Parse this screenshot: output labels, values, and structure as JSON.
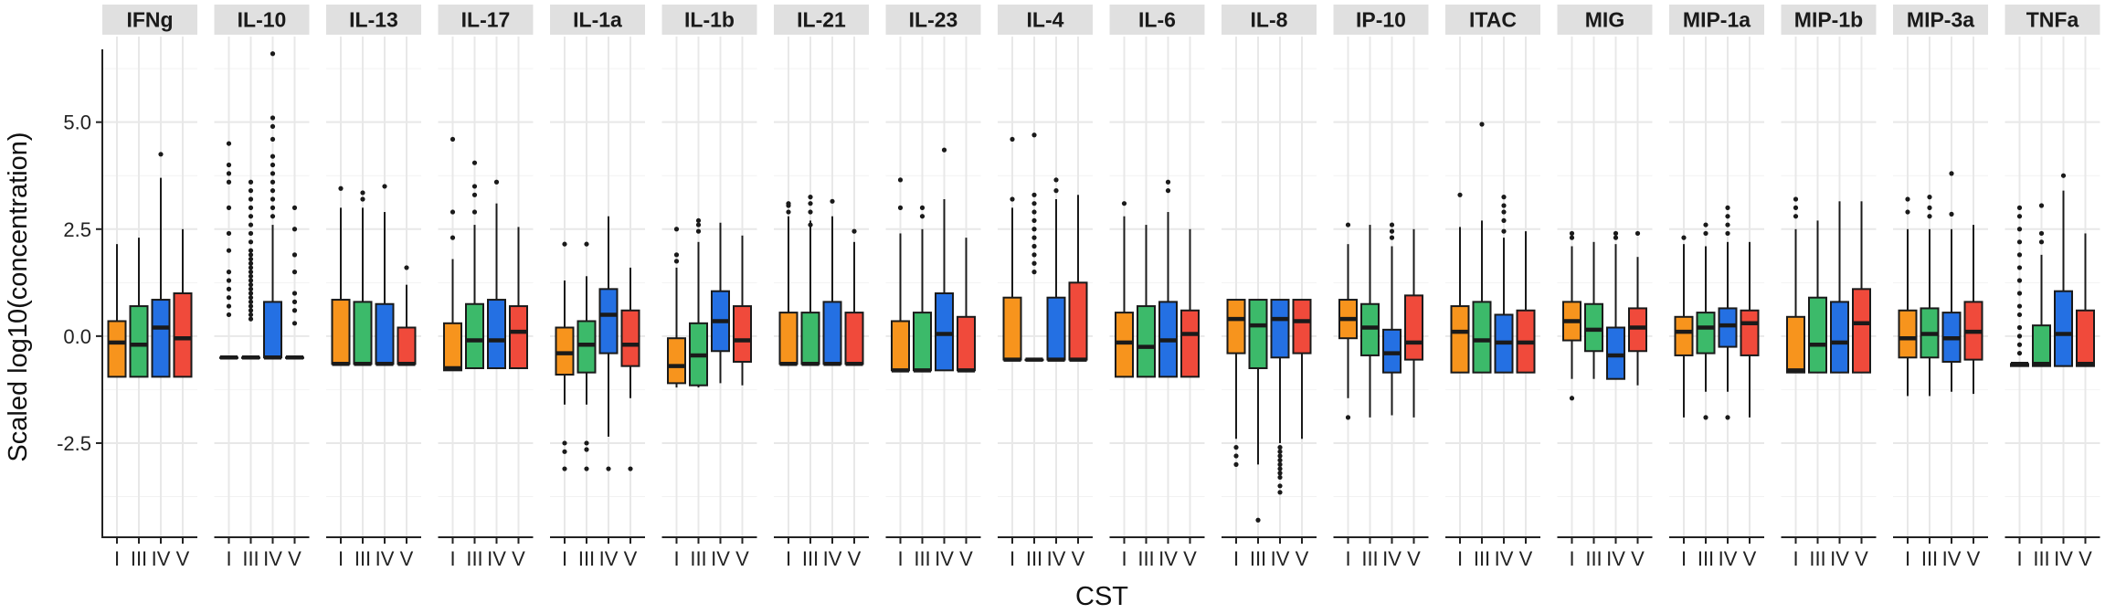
{
  "chart_data": {
    "type": "box",
    "facet_by": "cytokine",
    "xlabel": "CST",
    "ylabel": "Scaled log10(concentration)",
    "ylim": [
      -4.7,
      7.0
    ],
    "yticks": [
      -2.5,
      0.0,
      2.5,
      5.0
    ],
    "ytick_labels": [
      "-2.5",
      "0.0",
      "2.5",
      "5.0"
    ],
    "grid": true,
    "legend": "none",
    "x_tick_labels": [
      "I",
      "III",
      "IV",
      "V"
    ],
    "group_colors": [
      "#f7941d",
      "#3cba6a",
      "#2470e3",
      "#f04a3b"
    ],
    "facets": [
      {
        "name": "IFNg",
        "boxes": [
          {
            "q1": -0.95,
            "median": -0.15,
            "q3": 0.35,
            "lower": -0.95,
            "upper": 2.15,
            "outliers": []
          },
          {
            "q1": -0.95,
            "median": -0.2,
            "q3": 0.7,
            "lower": -0.95,
            "upper": 2.3,
            "outliers": []
          },
          {
            "q1": -0.95,
            "median": 0.2,
            "q3": 0.85,
            "lower": -0.95,
            "upper": 3.7,
            "outliers": [
              4.25
            ]
          },
          {
            "q1": -0.95,
            "median": -0.05,
            "q3": 1.0,
            "lower": -0.95,
            "upper": 2.5,
            "outliers": []
          }
        ]
      },
      {
        "name": "IL-10",
        "boxes": [
          {
            "q1": -0.5,
            "median": -0.5,
            "q3": -0.5,
            "lower": -0.5,
            "upper": -0.5,
            "outliers": [
              0.5,
              0.7,
              0.9,
              1.1,
              1.3,
              1.5,
              2.0,
              2.4,
              3.0,
              3.6,
              3.8,
              4.0,
              4.5
            ]
          },
          {
            "q1": -0.5,
            "median": -0.5,
            "q3": -0.5,
            "lower": -0.5,
            "upper": -0.5,
            "outliers": [
              0.4,
              0.5,
              0.6,
              0.7,
              0.8,
              0.9,
              1.0,
              1.1,
              1.2,
              1.3,
              1.4,
              1.5,
              1.6,
              1.7,
              1.8,
              1.9,
              2.0,
              2.2,
              2.4,
              2.6,
              2.8,
              3.0,
              3.2,
              3.4,
              3.6
            ]
          },
          {
            "q1": -0.5,
            "median": -0.5,
            "q3": 0.8,
            "lower": -0.5,
            "upper": 2.6,
            "outliers": [
              2.8,
              3.0,
              3.2,
              3.4,
              3.6,
              3.8,
              4.0,
              4.2,
              4.6,
              4.9,
              5.1,
              6.6
            ]
          },
          {
            "q1": -0.5,
            "median": -0.5,
            "q3": -0.5,
            "lower": -0.5,
            "upper": -0.5,
            "outliers": [
              0.3,
              0.6,
              0.8,
              1.0,
              1.5,
              1.9,
              2.5,
              3.0
            ]
          }
        ]
      },
      {
        "name": "IL-13",
        "boxes": [
          {
            "q1": -0.65,
            "median": -0.65,
            "q3": 0.85,
            "lower": -0.65,
            "upper": 3.0,
            "outliers": [
              3.45
            ]
          },
          {
            "q1": -0.65,
            "median": -0.65,
            "q3": 0.8,
            "lower": -0.65,
            "upper": 3.0,
            "outliers": [
              3.2,
              3.35
            ]
          },
          {
            "q1": -0.65,
            "median": -0.65,
            "q3": 0.75,
            "lower": -0.65,
            "upper": 2.9,
            "outliers": [
              3.5
            ]
          },
          {
            "q1": -0.65,
            "median": -0.65,
            "q3": 0.2,
            "lower": -0.65,
            "upper": 1.2,
            "outliers": [
              1.6
            ]
          }
        ]
      },
      {
        "name": "IL-17",
        "boxes": [
          {
            "q1": -0.8,
            "median": -0.75,
            "q3": 0.3,
            "lower": -0.8,
            "upper": 1.8,
            "outliers": [
              2.3,
              2.9,
              4.6
            ]
          },
          {
            "q1": -0.75,
            "median": -0.1,
            "q3": 0.75,
            "lower": -0.75,
            "upper": 2.6,
            "outliers": [
              2.9,
              3.3,
              3.5,
              4.05
            ]
          },
          {
            "q1": -0.75,
            "median": -0.1,
            "q3": 0.85,
            "lower": -0.75,
            "upper": 3.1,
            "outliers": [
              3.6
            ]
          },
          {
            "q1": -0.75,
            "median": 0.1,
            "q3": 0.7,
            "lower": -0.75,
            "upper": 2.55,
            "outliers": []
          }
        ]
      },
      {
        "name": "IL-1a",
        "boxes": [
          {
            "q1": -0.9,
            "median": -0.4,
            "q3": 0.2,
            "lower": -1.6,
            "upper": 1.3,
            "outliers": [
              -2.5,
              -2.7,
              -3.1,
              2.15
            ]
          },
          {
            "q1": -0.85,
            "median": -0.2,
            "q3": 0.35,
            "lower": -1.6,
            "upper": 1.4,
            "outliers": [
              -2.5,
              -2.65,
              -3.1,
              2.15
            ]
          },
          {
            "q1": -0.4,
            "median": 0.5,
            "q3": 1.1,
            "lower": -2.35,
            "upper": 2.8,
            "outliers": [
              -3.1
            ]
          },
          {
            "q1": -0.7,
            "median": -0.2,
            "q3": 0.6,
            "lower": -1.45,
            "upper": 1.6,
            "outliers": [
              -3.1
            ]
          }
        ]
      },
      {
        "name": "IL-1b",
        "boxes": [
          {
            "q1": -1.1,
            "median": -0.7,
            "q3": -0.05,
            "lower": -1.2,
            "upper": 1.6,
            "outliers": [
              1.75,
              1.9,
              2.5
            ]
          },
          {
            "q1": -1.15,
            "median": -0.45,
            "q3": 0.3,
            "lower": -1.2,
            "upper": 2.2,
            "outliers": [
              2.45,
              2.6,
              2.7
            ]
          },
          {
            "q1": -0.35,
            "median": 0.35,
            "q3": 1.05,
            "lower": -1.1,
            "upper": 2.65,
            "outliers": []
          },
          {
            "q1": -0.6,
            "median": -0.1,
            "q3": 0.7,
            "lower": -1.15,
            "upper": 2.35,
            "outliers": []
          }
        ]
      },
      {
        "name": "IL-21",
        "boxes": [
          {
            "q1": -0.65,
            "median": -0.65,
            "q3": 0.55,
            "lower": -0.65,
            "upper": 2.8,
            "outliers": [
              2.9,
              3.05,
              3.1
            ]
          },
          {
            "q1": -0.65,
            "median": -0.65,
            "q3": 0.55,
            "lower": -0.65,
            "upper": 2.7,
            "outliers": [
              2.6,
              2.9,
              3.1,
              3.25
            ]
          },
          {
            "q1": -0.65,
            "median": -0.65,
            "q3": 0.8,
            "lower": -0.65,
            "upper": 2.8,
            "outliers": [
              3.15
            ]
          },
          {
            "q1": -0.65,
            "median": -0.65,
            "q3": 0.55,
            "lower": -0.65,
            "upper": 2.2,
            "outliers": [
              2.45
            ]
          }
        ]
      },
      {
        "name": "IL-23",
        "boxes": [
          {
            "q1": -0.8,
            "median": -0.8,
            "q3": 0.35,
            "lower": -0.8,
            "upper": 2.4,
            "outliers": [
              3.0,
              3.65
            ]
          },
          {
            "q1": -0.8,
            "median": -0.8,
            "q3": 0.55,
            "lower": -0.8,
            "upper": 2.5,
            "outliers": [
              2.8,
              3.0
            ]
          },
          {
            "q1": -0.8,
            "median": 0.05,
            "q3": 1.0,
            "lower": -0.8,
            "upper": 3.2,
            "outliers": [
              4.35
            ]
          },
          {
            "q1": -0.8,
            "median": -0.8,
            "q3": 0.45,
            "lower": -0.8,
            "upper": 2.3,
            "outliers": []
          }
        ]
      },
      {
        "name": "IL-4",
        "boxes": [
          {
            "q1": -0.55,
            "median": -0.55,
            "q3": 0.9,
            "lower": -0.55,
            "upper": 3.0,
            "outliers": [
              3.2,
              4.6
            ]
          },
          {
            "q1": -0.55,
            "median": -0.55,
            "q3": -0.55,
            "lower": -0.55,
            "upper": -0.55,
            "outliers": [
              1.5,
              1.7,
              1.9,
              2.1,
              2.3,
              2.5,
              2.7,
              2.9,
              3.1,
              3.3,
              4.7
            ]
          },
          {
            "q1": -0.55,
            "median": -0.55,
            "q3": 0.9,
            "lower": -0.55,
            "upper": 3.2,
            "outliers": [
              3.4,
              3.65
            ]
          },
          {
            "q1": -0.55,
            "median": -0.55,
            "q3": 1.25,
            "lower": -0.55,
            "upper": 3.3,
            "outliers": []
          }
        ]
      },
      {
        "name": "IL-6",
        "boxes": [
          {
            "q1": -0.95,
            "median": -0.15,
            "q3": 0.55,
            "lower": -0.95,
            "upper": 2.8,
            "outliers": [
              3.1
            ]
          },
          {
            "q1": -0.95,
            "median": -0.25,
            "q3": 0.7,
            "lower": -0.95,
            "upper": 2.6,
            "outliers": []
          },
          {
            "q1": -0.95,
            "median": -0.1,
            "q3": 0.8,
            "lower": -0.95,
            "upper": 2.9,
            "outliers": [
              3.4,
              3.6
            ]
          },
          {
            "q1": -0.95,
            "median": 0.05,
            "q3": 0.6,
            "lower": -0.95,
            "upper": 2.5,
            "outliers": []
          }
        ]
      },
      {
        "name": "IL-8",
        "boxes": [
          {
            "q1": -0.4,
            "median": 0.4,
            "q3": 0.85,
            "lower": -2.4,
            "upper": 0.85,
            "outliers": [
              -2.6,
              -2.8,
              -3.0
            ]
          },
          {
            "q1": -0.75,
            "median": 0.25,
            "q3": 0.85,
            "lower": -3.0,
            "upper": 0.85,
            "outliers": [
              -4.3
            ]
          },
          {
            "q1": -0.5,
            "median": 0.4,
            "q3": 0.85,
            "lower": -2.5,
            "upper": 0.85,
            "outliers": [
              -2.6,
              -2.7,
              -2.8,
              -2.9,
              -3.0,
              -3.1,
              -3.2,
              -3.3,
              -3.5,
              -3.65
            ]
          },
          {
            "q1": -0.4,
            "median": 0.35,
            "q3": 0.85,
            "lower": -2.4,
            "upper": 0.85,
            "outliers": []
          }
        ]
      },
      {
        "name": "IP-10",
        "boxes": [
          {
            "q1": -0.05,
            "median": 0.4,
            "q3": 0.85,
            "lower": -1.45,
            "upper": 2.15,
            "outliers": [
              -1.9,
              2.6
            ]
          },
          {
            "q1": -0.45,
            "median": 0.2,
            "q3": 0.75,
            "lower": -1.9,
            "upper": 2.6,
            "outliers": []
          },
          {
            "q1": -0.85,
            "median": -0.4,
            "q3": 0.15,
            "lower": -1.85,
            "upper": 2.1,
            "outliers": [
              2.3,
              2.45,
              2.6
            ]
          },
          {
            "q1": -0.55,
            "median": -0.15,
            "q3": 0.95,
            "lower": -1.9,
            "upper": 2.5,
            "outliers": []
          }
        ]
      },
      {
        "name": "ITAC",
        "boxes": [
          {
            "q1": -0.85,
            "median": 0.1,
            "q3": 0.7,
            "lower": -0.85,
            "upper": 2.55,
            "outliers": [
              3.3
            ]
          },
          {
            "q1": -0.85,
            "median": -0.1,
            "q3": 0.8,
            "lower": -0.85,
            "upper": 2.7,
            "outliers": [
              4.95
            ]
          },
          {
            "q1": -0.85,
            "median": -0.15,
            "q3": 0.5,
            "lower": -0.85,
            "upper": 2.3,
            "outliers": [
              2.45,
              2.7,
              2.9,
              3.05,
              3.25
            ]
          },
          {
            "q1": -0.85,
            "median": -0.15,
            "q3": 0.6,
            "lower": -0.85,
            "upper": 2.45,
            "outliers": []
          }
        ]
      },
      {
        "name": "MIG",
        "boxes": [
          {
            "q1": -0.1,
            "median": 0.35,
            "q3": 0.8,
            "lower": -1.0,
            "upper": 2.1,
            "outliers": [
              -1.45,
              2.3,
              2.4
            ]
          },
          {
            "q1": -0.35,
            "median": 0.15,
            "q3": 0.75,
            "lower": -1.0,
            "upper": 2.2,
            "outliers": []
          },
          {
            "q1": -1.0,
            "median": -0.45,
            "q3": 0.2,
            "lower": -1.0,
            "upper": 2.15,
            "outliers": [
              2.3,
              2.4
            ]
          },
          {
            "q1": -0.35,
            "median": 0.2,
            "q3": 0.65,
            "lower": -1.15,
            "upper": 1.85,
            "outliers": [
              2.4
            ]
          }
        ]
      },
      {
        "name": "MIP-1a",
        "boxes": [
          {
            "q1": -0.45,
            "median": 0.1,
            "q3": 0.45,
            "lower": -1.9,
            "upper": 2.15,
            "outliers": [
              2.3
            ]
          },
          {
            "q1": -0.4,
            "median": 0.2,
            "q3": 0.55,
            "lower": -1.3,
            "upper": 2.1,
            "outliers": [
              -1.9,
              2.4,
              2.6
            ]
          },
          {
            "q1": -0.25,
            "median": 0.25,
            "q3": 0.65,
            "lower": -1.3,
            "upper": 2.2,
            "outliers": [
              -1.9,
              2.4,
              2.6,
              2.8,
              3.0
            ]
          },
          {
            "q1": -0.45,
            "median": 0.3,
            "q3": 0.6,
            "lower": -1.9,
            "upper": 2.2,
            "outliers": []
          }
        ]
      },
      {
        "name": "MIP-1b",
        "boxes": [
          {
            "q1": -0.85,
            "median": -0.8,
            "q3": 0.45,
            "lower": -0.85,
            "upper": 2.5,
            "outliers": [
              2.8,
              3.0,
              3.2
            ]
          },
          {
            "q1": -0.85,
            "median": -0.2,
            "q3": 0.9,
            "lower": -0.85,
            "upper": 2.7,
            "outliers": []
          },
          {
            "q1": -0.85,
            "median": -0.15,
            "q3": 0.8,
            "lower": -0.85,
            "upper": 3.15,
            "outliers": []
          },
          {
            "q1": -0.85,
            "median": 0.3,
            "q3": 1.1,
            "lower": -0.85,
            "upper": 3.15,
            "outliers": []
          }
        ]
      },
      {
        "name": "MIP-3a",
        "boxes": [
          {
            "q1": -0.5,
            "median": -0.05,
            "q3": 0.6,
            "lower": -1.4,
            "upper": 2.5,
            "outliers": [
              2.9,
              3.2
            ]
          },
          {
            "q1": -0.5,
            "median": 0.05,
            "q3": 0.65,
            "lower": -1.4,
            "upper": 2.5,
            "outliers": [
              2.8,
              3.0,
              3.25
            ]
          },
          {
            "q1": -0.6,
            "median": -0.05,
            "q3": 0.55,
            "lower": -1.3,
            "upper": 2.5,
            "outliers": [
              2.85,
              3.8
            ]
          },
          {
            "q1": -0.55,
            "median": 0.1,
            "q3": 0.8,
            "lower": -1.35,
            "upper": 2.6,
            "outliers": []
          }
        ]
      },
      {
        "name": "TNFa",
        "boxes": [
          {
            "q1": -0.7,
            "median": -0.65,
            "q3": -0.65,
            "lower": -0.7,
            "upper": -0.6,
            "outliers": [
              -0.4,
              -0.2,
              0.0,
              0.2,
              0.5,
              0.7,
              1.0,
              1.3,
              1.6,
              1.9,
              2.2,
              2.5,
              2.8,
              3.0
            ]
          },
          {
            "q1": -0.7,
            "median": -0.65,
            "q3": 0.25,
            "lower": -0.7,
            "upper": 1.9,
            "outliers": [
              2.2,
              2.4,
              3.05
            ]
          },
          {
            "q1": -0.7,
            "median": 0.05,
            "q3": 1.05,
            "lower": -0.7,
            "upper": 3.4,
            "outliers": [
              3.75
            ]
          },
          {
            "q1": -0.7,
            "median": -0.65,
            "q3": 0.6,
            "lower": -0.7,
            "upper": 2.4,
            "outliers": []
          }
        ]
      }
    ]
  }
}
